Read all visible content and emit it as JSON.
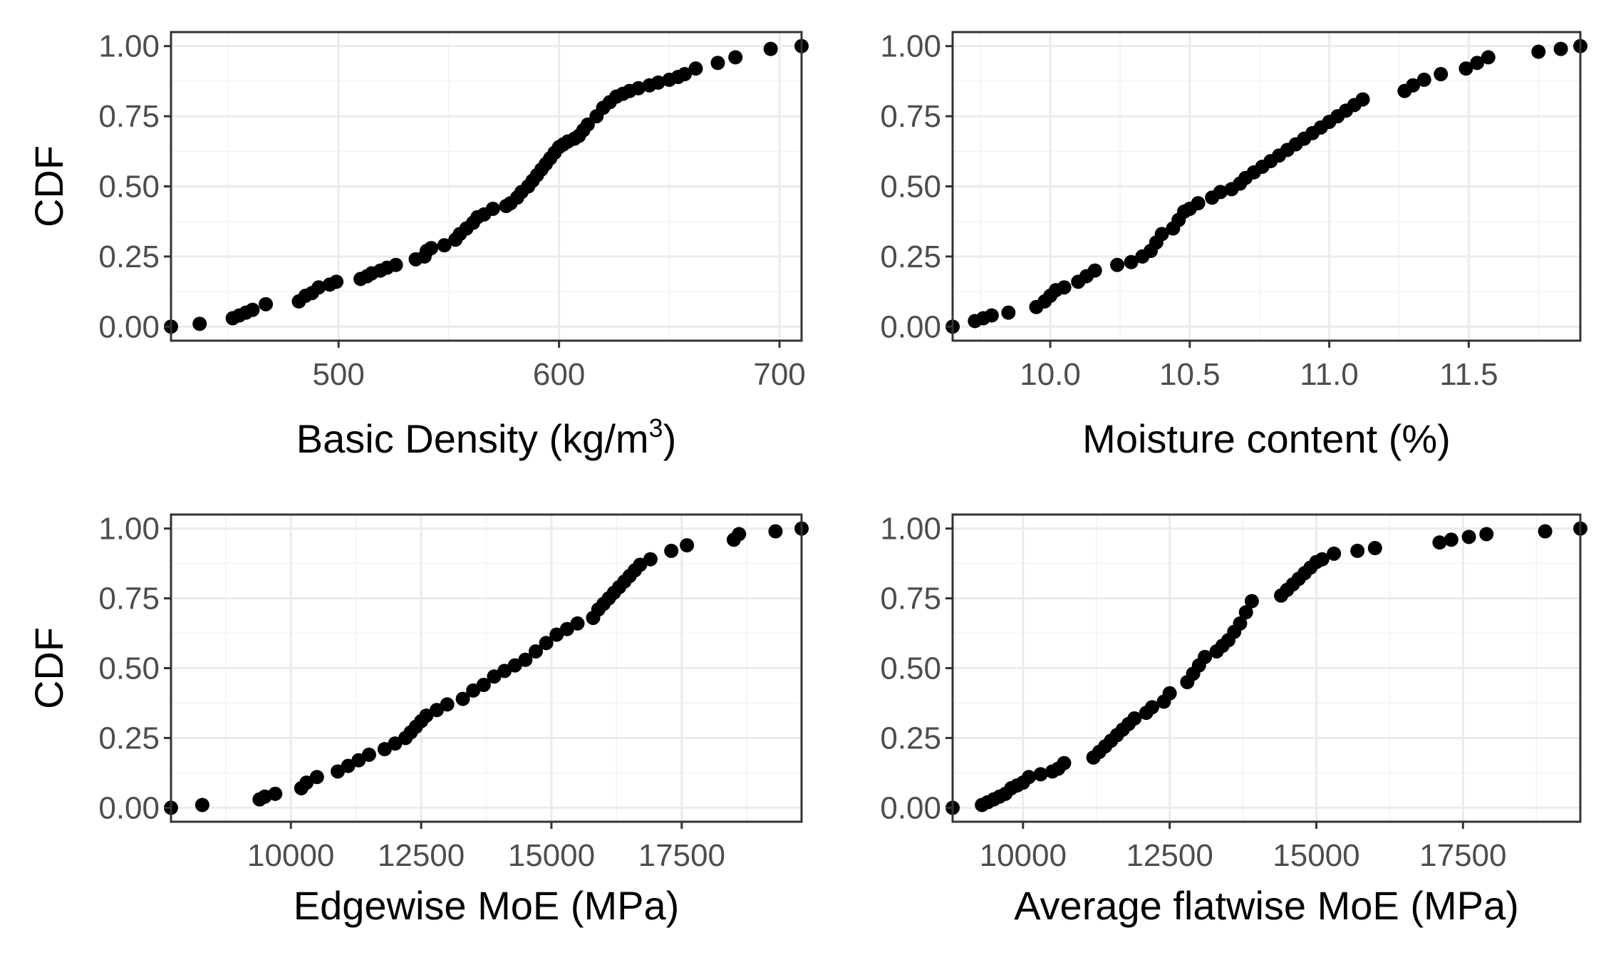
{
  "chart_data": [
    {
      "type": "scatter",
      "panel": "top-left",
      "title": "",
      "xlabel": "Basic Density (kg/m",
      "xlabel_superscript": "3",
      "xlabel_suffix": ")",
      "ylabel": "CDF",
      "xlim": [
        424,
        710
      ],
      "ylim": [
        -0.05,
        1.05
      ],
      "xticks": [
        500,
        600,
        700
      ],
      "xtick_labels": [
        "500",
        "600",
        "700"
      ],
      "yticks": [
        0,
        0.25,
        0.5,
        0.75,
        1
      ],
      "ytick_labels": [
        "0.00",
        "0.25",
        "0.50",
        "0.75",
        "1.00"
      ],
      "grid": true,
      "points": {
        "x": [
          424,
          437,
          452,
          455,
          458,
          461,
          467,
          482,
          485,
          488,
          491,
          496,
          499,
          510,
          513,
          515,
          519,
          522,
          526,
          535,
          539,
          540,
          542,
          548,
          553,
          555,
          558,
          561,
          563,
          566,
          570,
          576,
          578,
          581,
          583,
          586,
          588,
          590,
          592,
          594,
          596,
          598,
          600,
          602,
          604,
          607,
          609,
          611,
          613,
          617,
          620,
          623,
          626,
          629,
          632,
          636,
          641,
          645,
          650,
          654,
          657,
          662,
          672,
          680,
          696,
          710
        ],
        "y": [
          0.0,
          0.01,
          0.03,
          0.04,
          0.05,
          0.06,
          0.08,
          0.09,
          0.11,
          0.12,
          0.14,
          0.15,
          0.16,
          0.17,
          0.18,
          0.19,
          0.2,
          0.21,
          0.22,
          0.24,
          0.25,
          0.27,
          0.28,
          0.29,
          0.31,
          0.33,
          0.35,
          0.37,
          0.39,
          0.4,
          0.42,
          0.43,
          0.44,
          0.46,
          0.48,
          0.5,
          0.52,
          0.54,
          0.56,
          0.58,
          0.6,
          0.62,
          0.64,
          0.65,
          0.66,
          0.67,
          0.68,
          0.7,
          0.72,
          0.75,
          0.78,
          0.8,
          0.82,
          0.83,
          0.84,
          0.85,
          0.86,
          0.87,
          0.88,
          0.89,
          0.9,
          0.92,
          0.94,
          0.96,
          0.99,
          1.0
        ]
      }
    },
    {
      "type": "scatter",
      "panel": "top-right",
      "title": "",
      "xlabel": "Moisture content (%)",
      "ylabel": "",
      "xlim": [
        9.65,
        11.9
      ],
      "ylim": [
        -0.05,
        1.05
      ],
      "xticks": [
        10.0,
        10.5,
        11.0,
        11.5
      ],
      "xtick_labels": [
        "10.0",
        "10.5",
        "11.0",
        "11.5"
      ],
      "yticks": [
        0,
        0.25,
        0.5,
        0.75,
        1
      ],
      "ytick_labels": [
        "0.00",
        "0.25",
        "0.50",
        "0.75",
        "1.00"
      ],
      "grid": true,
      "points": {
        "x": [
          9.65,
          9.73,
          9.76,
          9.79,
          9.85,
          9.95,
          9.98,
          10.0,
          10.02,
          10.05,
          10.1,
          10.13,
          10.16,
          10.24,
          10.29,
          10.33,
          10.36,
          10.38,
          10.4,
          10.44,
          10.46,
          10.48,
          10.5,
          10.53,
          10.58,
          10.61,
          10.65,
          10.68,
          10.7,
          10.73,
          10.76,
          10.79,
          10.82,
          10.85,
          10.88,
          10.91,
          10.94,
          10.97,
          11.0,
          11.03,
          11.06,
          11.09,
          11.12,
          11.27,
          11.3,
          11.34,
          11.4,
          11.49,
          11.53,
          11.57,
          11.75,
          11.83,
          11.9
        ],
        "y": [
          0.0,
          0.02,
          0.03,
          0.04,
          0.05,
          0.07,
          0.09,
          0.11,
          0.13,
          0.14,
          0.16,
          0.18,
          0.2,
          0.22,
          0.23,
          0.25,
          0.27,
          0.3,
          0.33,
          0.35,
          0.38,
          0.41,
          0.42,
          0.44,
          0.46,
          0.48,
          0.49,
          0.51,
          0.53,
          0.55,
          0.57,
          0.59,
          0.61,
          0.63,
          0.65,
          0.67,
          0.69,
          0.71,
          0.73,
          0.75,
          0.77,
          0.79,
          0.81,
          0.84,
          0.86,
          0.88,
          0.9,
          0.92,
          0.94,
          0.96,
          0.98,
          0.99,
          1.0
        ]
      }
    },
    {
      "type": "scatter",
      "panel": "bottom-left",
      "title": "",
      "xlabel": "Edgewise MoE (MPa)",
      "ylabel": "CDF",
      "xlim": [
        7700,
        19800
      ],
      "ylim": [
        -0.05,
        1.05
      ],
      "xticks": [
        10000,
        12500,
        15000,
        17500
      ],
      "xtick_labels": [
        "10000",
        "12500",
        "15000",
        "17500"
      ],
      "yticks": [
        0,
        0.25,
        0.5,
        0.75,
        1
      ],
      "ytick_labels": [
        "0.00",
        "0.25",
        "0.50",
        "0.75",
        "1.00"
      ],
      "grid": true,
      "points": {
        "x": [
          7700,
          8300,
          9400,
          9500,
          9700,
          10200,
          10300,
          10500,
          10900,
          11100,
          11300,
          11500,
          11800,
          12000,
          12200,
          12300,
          12400,
          12500,
          12600,
          12800,
          13000,
          13300,
          13500,
          13700,
          13900,
          14100,
          14300,
          14500,
          14700,
          14900,
          15100,
          15300,
          15500,
          15800,
          15900,
          16000,
          16100,
          16200,
          16300,
          16400,
          16500,
          16600,
          16700,
          16900,
          17300,
          17600,
          18500,
          18600,
          19300,
          19800
        ],
        "y": [
          0.0,
          0.01,
          0.03,
          0.04,
          0.05,
          0.07,
          0.09,
          0.11,
          0.13,
          0.15,
          0.17,
          0.19,
          0.21,
          0.23,
          0.25,
          0.27,
          0.29,
          0.31,
          0.33,
          0.35,
          0.37,
          0.39,
          0.42,
          0.44,
          0.47,
          0.49,
          0.51,
          0.53,
          0.56,
          0.59,
          0.62,
          0.64,
          0.66,
          0.68,
          0.71,
          0.73,
          0.75,
          0.77,
          0.79,
          0.81,
          0.83,
          0.85,
          0.87,
          0.89,
          0.92,
          0.94,
          0.96,
          0.98,
          0.99,
          1.0
        ]
      }
    },
    {
      "type": "scatter",
      "panel": "bottom-right",
      "title": "",
      "xlabel": "Average flatwise MoE (MPa)",
      "ylabel": "",
      "xlim": [
        8800,
        19500
      ],
      "ylim": [
        -0.05,
        1.05
      ],
      "xticks": [
        10000,
        12500,
        15000,
        17500
      ],
      "xtick_labels": [
        "10000",
        "12500",
        "15000",
        "17500"
      ],
      "yticks": [
        0,
        0.25,
        0.5,
        0.75,
        1
      ],
      "ytick_labels": [
        "0.00",
        "0.25",
        "0.50",
        "0.75",
        "1.00"
      ],
      "grid": true,
      "points": {
        "x": [
          8800,
          9300,
          9400,
          9500,
          9600,
          9700,
          9800,
          9900,
          10000,
          10100,
          10300,
          10500,
          10600,
          10700,
          11200,
          11300,
          11400,
          11500,
          11600,
          11700,
          11800,
          11900,
          12100,
          12200,
          12400,
          12500,
          12800,
          12900,
          13000,
          13100,
          13300,
          13400,
          13500,
          13600,
          13700,
          13800,
          13900,
          14400,
          14500,
          14600,
          14700,
          14800,
          14900,
          15000,
          15100,
          15300,
          15700,
          16000,
          17100,
          17300,
          17600,
          17900,
          18900,
          19500
        ],
        "y": [
          0.0,
          0.01,
          0.02,
          0.03,
          0.04,
          0.05,
          0.07,
          0.08,
          0.09,
          0.11,
          0.12,
          0.13,
          0.14,
          0.16,
          0.18,
          0.2,
          0.22,
          0.24,
          0.26,
          0.28,
          0.3,
          0.32,
          0.34,
          0.36,
          0.38,
          0.41,
          0.45,
          0.48,
          0.51,
          0.54,
          0.56,
          0.58,
          0.6,
          0.63,
          0.66,
          0.7,
          0.74,
          0.76,
          0.78,
          0.8,
          0.82,
          0.84,
          0.86,
          0.88,
          0.89,
          0.91,
          0.92,
          0.93,
          0.95,
          0.96,
          0.97,
          0.98,
          0.99,
          1.0
        ]
      }
    }
  ]
}
